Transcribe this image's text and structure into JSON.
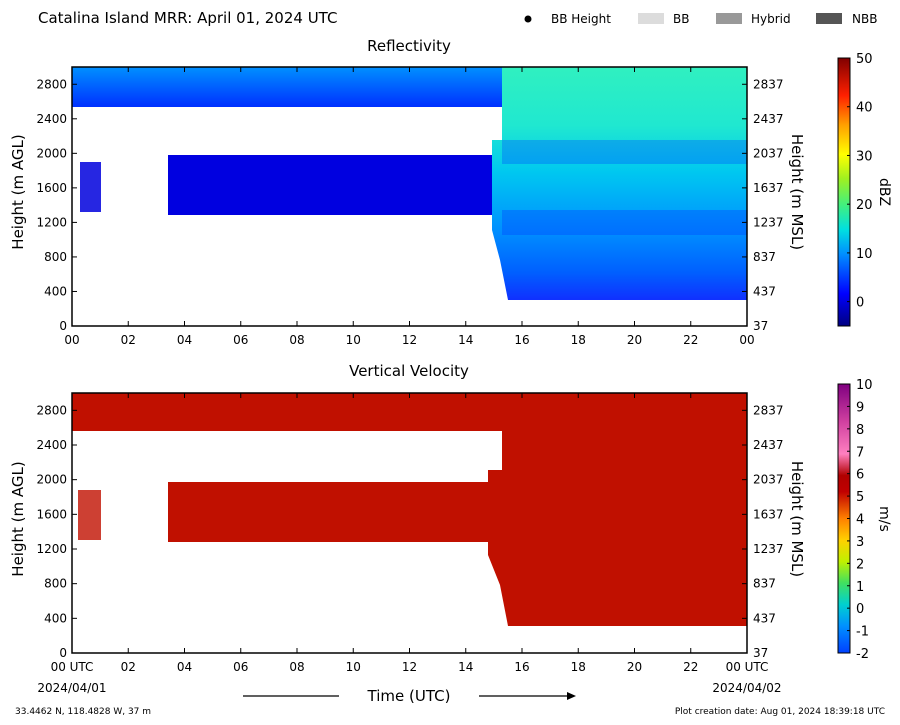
{
  "header": {
    "title": "Catalina Island MRR:  April 01, 2024 UTC",
    "legend": [
      {
        "label": "BB Height",
        "symbol": "dot",
        "color": "#000000"
      },
      {
        "label": "BB",
        "symbol": "box",
        "color": "#dcdcdc"
      },
      {
        "label": "Hybrid",
        "symbol": "box",
        "color": "#999999"
      },
      {
        "label": "NBB",
        "symbol": "box",
        "color": "#555555"
      }
    ]
  },
  "footer": {
    "coords": "33.4462 N, 118.4828 W, 37 m",
    "created": "Plot creation date: Aug 01, 2024 18:39:18 UTC",
    "xlabel": "Time (UTC)",
    "date_start": "2024/04/01",
    "date_end": "2024/04/02"
  },
  "chart_data": [
    {
      "type": "heatmap",
      "title": "Reflectivity",
      "ylabel": "Height (m AGL)",
      "y2label": "Height (m MSL)",
      "xlim": [
        0,
        24
      ],
      "ylim": [
        0,
        3000
      ],
      "x_ticks": [
        "00",
        "02",
        "04",
        "06",
        "08",
        "10",
        "12",
        "14",
        "16",
        "18",
        "20",
        "22",
        "00"
      ],
      "y_ticks": [
        0,
        400,
        800,
        1200,
        1600,
        2000,
        2400,
        2800
      ],
      "y2_ticks": [
        "37",
        "437",
        "837",
        "1237",
        "1637",
        "2037",
        "2437",
        "2837"
      ],
      "colorbar": {
        "label": "dBZ",
        "range": [
          -5,
          50
        ],
        "ticks": [
          0,
          10,
          20,
          30,
          40,
          50
        ]
      },
      "regions": [
        {
          "x": [
            0,
            15.2
          ],
          "y": [
            2500,
            3000
          ],
          "value": 0,
          "note": "upper echo layer"
        },
        {
          "x": [
            0.3,
            1.2
          ],
          "y": [
            1300,
            1800
          ],
          "value": -2
        },
        {
          "x": [
            3.4,
            15.2
          ],
          "y": [
            1200,
            2000
          ],
          "value": -2
        },
        {
          "x": [
            15.2,
            24
          ],
          "y": [
            300,
            3000
          ],
          "value": 10
        }
      ]
    },
    {
      "type": "heatmap",
      "title": "Vertical Velocity",
      "ylabel": "Height (m AGL)",
      "y2label": "Height (m MSL)",
      "xlim": [
        0,
        24
      ],
      "ylim": [
        0,
        3000
      ],
      "x_ticks": [
        "00 UTC",
        "02",
        "04",
        "06",
        "08",
        "10",
        "12",
        "14",
        "16",
        "18",
        "20",
        "22",
        "00 UTC"
      ],
      "y_ticks": [
        0,
        400,
        800,
        1200,
        1600,
        2000,
        2400,
        2800
      ],
      "y2_ticks": [
        "37",
        "437",
        "837",
        "1237",
        "1637",
        "2037",
        "2437",
        "2837"
      ],
      "colorbar": {
        "label": "m/s",
        "range": [
          -2,
          10
        ],
        "ticks": [
          -2,
          -1,
          0,
          1,
          2,
          3,
          4,
          5,
          6,
          7,
          8,
          9,
          10
        ]
      },
      "regions": [
        {
          "x": [
            0,
            15.2
          ],
          "y": [
            2600,
            3000
          ],
          "value": 6
        },
        {
          "x": [
            0.3,
            1.2
          ],
          "y": [
            1300,
            1800
          ],
          "value": 6
        },
        {
          "x": [
            3.4,
            15.2
          ],
          "y": [
            1200,
            2000
          ],
          "value": 6
        },
        {
          "x": [
            15.3,
            24
          ],
          "y": [
            300,
            3000
          ],
          "value": 6
        }
      ]
    }
  ]
}
